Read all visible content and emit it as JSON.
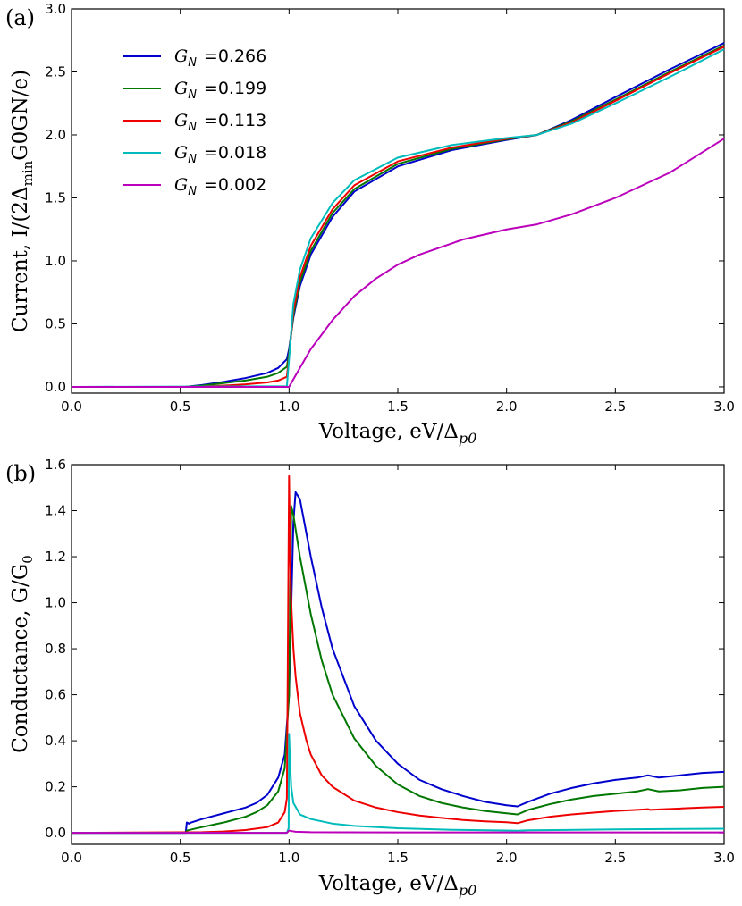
{
  "chart_data": [
    {
      "type": "line",
      "panel_label": "(a)",
      "xlabel": "Voltage, eV/Δ",
      "xlabel_sub": "p0",
      "ylabel": "Current, I/(2Δ",
      "ylabel_sub": "min",
      "ylabel_tail": "G0GN/e)",
      "xlim": [
        0.0,
        3.0
      ],
      "ylim": [
        -0.05,
        3.0
      ],
      "xticks": [
        "0.0",
        "0.5",
        "1.0",
        "1.5",
        "2.0",
        "2.5",
        "3.0"
      ],
      "yticks": [
        "0.0",
        "0.5",
        "1.0",
        "1.5",
        "2.0",
        "2.5",
        "3.0"
      ],
      "legend_position": "upper-left",
      "series": [
        {
          "name": "0.266",
          "color": "#0000cc",
          "x": [
            0,
            0.52,
            0.6,
            0.7,
            0.8,
            0.9,
            0.95,
            0.99,
            1.0,
            1.02,
            1.05,
            1.1,
            1.2,
            1.3,
            1.5,
            1.75,
            2.0,
            2.14,
            2.3,
            2.5,
            2.75,
            3.0
          ],
          "y": [
            0,
            0,
            0.015,
            0.04,
            0.07,
            0.11,
            0.15,
            0.22,
            0.3,
            0.55,
            0.8,
            1.05,
            1.35,
            1.55,
            1.75,
            1.88,
            1.96,
            2.0,
            2.12,
            2.3,
            2.52,
            2.73
          ]
        },
        {
          "name": "0.199",
          "color": "#007700",
          "x": [
            0,
            0.52,
            0.6,
            0.7,
            0.8,
            0.9,
            0.95,
            0.99,
            1.0,
            1.02,
            1.05,
            1.1,
            1.2,
            1.3,
            1.5,
            1.75,
            2.0,
            2.14,
            2.3,
            2.5,
            2.75,
            3.0
          ],
          "y": [
            0,
            0,
            0.01,
            0.03,
            0.05,
            0.08,
            0.11,
            0.16,
            0.27,
            0.57,
            0.83,
            1.08,
            1.38,
            1.57,
            1.77,
            1.89,
            1.965,
            2.0,
            2.11,
            2.28,
            2.5,
            2.71
          ]
        },
        {
          "name": "0.113",
          "color": "#ee0000",
          "x": [
            0,
            0.52,
            0.6,
            0.7,
            0.8,
            0.9,
            0.95,
            0.99,
            1.0,
            1.02,
            1.05,
            1.1,
            1.2,
            1.3,
            1.5,
            1.75,
            2.0,
            2.14,
            2.3,
            2.5,
            2.75,
            3.0
          ],
          "y": [
            0,
            0,
            0.003,
            0.01,
            0.02,
            0.035,
            0.05,
            0.08,
            0.24,
            0.6,
            0.87,
            1.12,
            1.41,
            1.6,
            1.79,
            1.9,
            1.97,
            2.0,
            2.1,
            2.27,
            2.49,
            2.7
          ]
        },
        {
          "name": "0.018",
          "color": "#00bbbb",
          "x": [
            0,
            0.99,
            1.0,
            1.02,
            1.05,
            1.1,
            1.2,
            1.3,
            1.5,
            1.75,
            2.0,
            2.14,
            2.3,
            2.5,
            2.75,
            3.0
          ],
          "y": [
            0,
            0.005,
            0.22,
            0.66,
            0.93,
            1.18,
            1.46,
            1.64,
            1.82,
            1.92,
            1.975,
            2.0,
            2.09,
            2.25,
            2.46,
            2.68
          ]
        },
        {
          "name": "0.002",
          "color": "#bb00bb",
          "x": [
            0,
            1.0,
            1.05,
            1.1,
            1.2,
            1.3,
            1.4,
            1.5,
            1.6,
            1.8,
            2.0,
            2.14,
            2.3,
            2.5,
            2.75,
            3.0
          ],
          "y": [
            0,
            0,
            0.15,
            0.3,
            0.53,
            0.72,
            0.86,
            0.97,
            1.05,
            1.17,
            1.25,
            1.29,
            1.37,
            1.5,
            1.7,
            1.97
          ]
        }
      ]
    },
    {
      "type": "line",
      "panel_label": "(b)",
      "xlabel": "Voltage, eV/Δ",
      "xlabel_sub": "p0",
      "ylabel": "Conductance, G/G",
      "ylabel_sub": "0",
      "xlim": [
        0.0,
        3.0
      ],
      "ylim": [
        -0.05,
        1.6
      ],
      "xticks": [
        "0.0",
        "0.5",
        "1.0",
        "1.5",
        "2.0",
        "2.5",
        "3.0"
      ],
      "yticks": [
        "0.0",
        "0.2",
        "0.4",
        "0.6",
        "0.8",
        "1.0",
        "1.2",
        "1.4",
        "1.6"
      ],
      "series": [
        {
          "name": "0.266",
          "color": "#0000cc",
          "x": [
            0,
            0.525,
            0.53,
            0.54,
            0.55,
            0.6,
            0.7,
            0.8,
            0.85,
            0.9,
            0.95,
            0.98,
            1.0,
            1.02,
            1.03,
            1.05,
            1.08,
            1.1,
            1.15,
            1.2,
            1.3,
            1.4,
            1.5,
            1.6,
            1.7,
            1.8,
            1.9,
            2.0,
            2.05,
            2.1,
            2.2,
            2.3,
            2.4,
            2.5,
            2.6,
            2.65,
            2.66,
            2.7,
            2.8,
            2.9,
            3.0
          ],
          "y": [
            0,
            0,
            0.045,
            0.04,
            0.045,
            0.06,
            0.085,
            0.11,
            0.13,
            0.165,
            0.24,
            0.34,
            0.6,
            1.35,
            1.48,
            1.45,
            1.3,
            1.2,
            0.98,
            0.8,
            0.55,
            0.4,
            0.3,
            0.23,
            0.19,
            0.16,
            0.135,
            0.12,
            0.115,
            0.135,
            0.17,
            0.195,
            0.215,
            0.23,
            0.24,
            0.25,
            0.248,
            0.24,
            0.25,
            0.26,
            0.265
          ]
        },
        {
          "name": "0.199",
          "color": "#007700",
          "x": [
            0,
            0.525,
            0.53,
            0.6,
            0.7,
            0.8,
            0.85,
            0.9,
            0.95,
            0.98,
            1.0,
            1.01,
            1.02,
            1.05,
            1.08,
            1.1,
            1.15,
            1.2,
            1.3,
            1.4,
            1.5,
            1.6,
            1.7,
            1.8,
            1.9,
            2.0,
            2.05,
            2.1,
            2.2,
            2.3,
            2.4,
            2.5,
            2.6,
            2.65,
            2.66,
            2.7,
            2.8,
            2.9,
            3.0
          ],
          "y": [
            0,
            0,
            0.01,
            0.025,
            0.045,
            0.07,
            0.09,
            0.12,
            0.18,
            0.28,
            0.6,
            1.42,
            1.38,
            1.2,
            1.05,
            0.95,
            0.75,
            0.6,
            0.41,
            0.29,
            0.21,
            0.16,
            0.13,
            0.11,
            0.095,
            0.085,
            0.08,
            0.1,
            0.125,
            0.145,
            0.16,
            0.17,
            0.18,
            0.19,
            0.188,
            0.18,
            0.185,
            0.195,
            0.2
          ]
        },
        {
          "name": "0.113",
          "color": "#ee0000",
          "x": [
            0,
            0.6,
            0.7,
            0.8,
            0.9,
            0.95,
            0.98,
            0.99,
            1.0,
            1.005,
            1.01,
            1.02,
            1.03,
            1.05,
            1.08,
            1.1,
            1.15,
            1.2,
            1.3,
            1.4,
            1.5,
            1.6,
            1.7,
            1.8,
            1.9,
            2.0,
            2.05,
            2.1,
            2.2,
            2.3,
            2.4,
            2.5,
            2.6,
            2.65,
            2.66,
            2.7,
            2.8,
            2.9,
            3.0
          ],
          "y": [
            0,
            0.003,
            0.006,
            0.012,
            0.025,
            0.045,
            0.09,
            0.15,
            1.55,
            1.2,
            1.0,
            0.8,
            0.68,
            0.52,
            0.4,
            0.34,
            0.25,
            0.2,
            0.14,
            0.11,
            0.09,
            0.075,
            0.065,
            0.056,
            0.05,
            0.046,
            0.042,
            0.055,
            0.07,
            0.08,
            0.088,
            0.095,
            0.1,
            0.103,
            0.1,
            0.102,
            0.106,
            0.11,
            0.113
          ]
        },
        {
          "name": "0.018",
          "color": "#00bbbb",
          "x": [
            0,
            0.99,
            0.998,
            1.0,
            1.005,
            1.01,
            1.02,
            1.05,
            1.1,
            1.2,
            1.3,
            1.5,
            1.75,
            2.0,
            2.05,
            2.1,
            2.5,
            3.0
          ],
          "y": [
            0,
            0,
            0.02,
            0.43,
            0.3,
            0.2,
            0.13,
            0.08,
            0.06,
            0.04,
            0.03,
            0.02,
            0.013,
            0.01,
            0.009,
            0.011,
            0.015,
            0.018
          ]
        },
        {
          "name": "0.002",
          "color": "#bb00bb",
          "x": [
            0,
            0.99,
            1.0,
            1.01,
            1.03,
            1.1,
            1.5,
            2.0,
            2.5,
            3.0
          ],
          "y": [
            0,
            0,
            0.01,
            0.008,
            0.005,
            0.003,
            0.002,
            0.002,
            0.002,
            0.002
          ]
        }
      ]
    }
  ]
}
